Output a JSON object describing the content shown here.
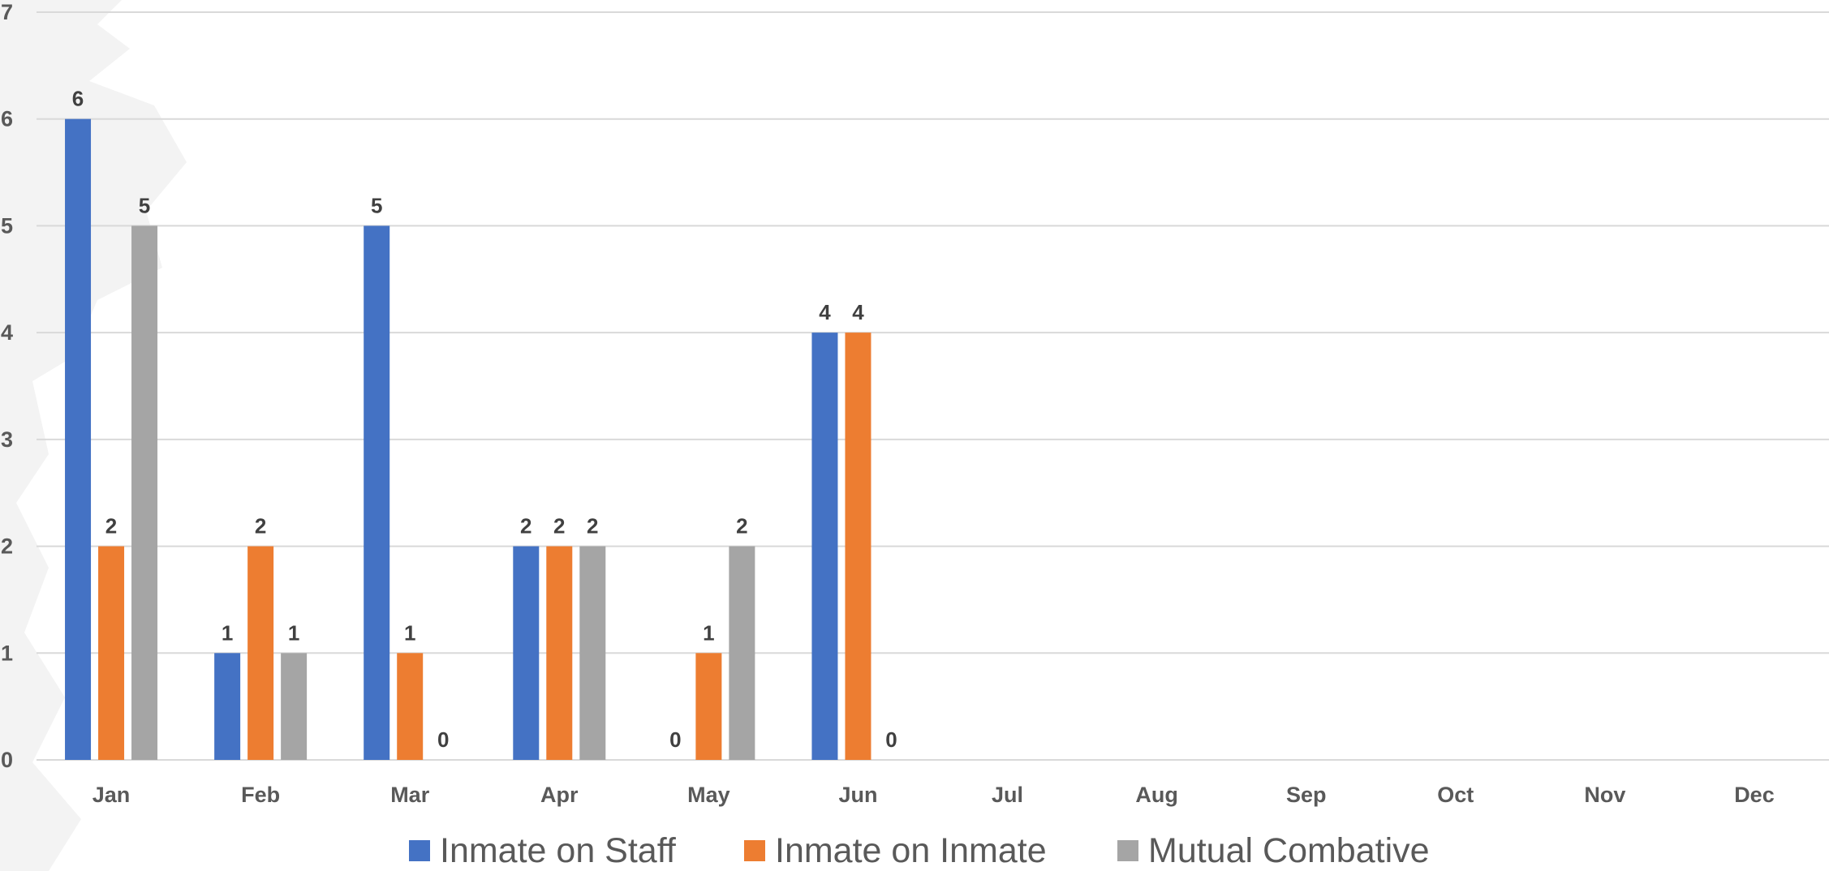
{
  "chart_data": {
    "type": "bar",
    "title": "",
    "xlabel": "",
    "ylabel": "",
    "ylim": [
      0,
      7
    ],
    "yticks": [
      0,
      1,
      2,
      3,
      4,
      5,
      6,
      7
    ],
    "grid": true,
    "legend_position": "bottom",
    "categories": [
      "Jan",
      "Feb",
      "Mar",
      "Apr",
      "May",
      "Jun",
      "Jul",
      "Aug",
      "Sep",
      "Oct",
      "Nov",
      "Dec"
    ],
    "series": [
      {
        "name": "Inmate on Staff",
        "color": "#4472c4",
        "values": [
          6,
          1,
          5,
          2,
          0,
          4,
          null,
          null,
          null,
          null,
          null,
          null
        ]
      },
      {
        "name": "Inmate on Inmate",
        "color": "#ed7d31",
        "values": [
          2,
          2,
          1,
          2,
          1,
          4,
          null,
          null,
          null,
          null,
          null,
          null
        ]
      },
      {
        "name": "Mutual Combative",
        "color": "#a5a5a5",
        "values": [
          5,
          1,
          0,
          2,
          2,
          0,
          null,
          null,
          null,
          null,
          null,
          null
        ]
      }
    ]
  }
}
